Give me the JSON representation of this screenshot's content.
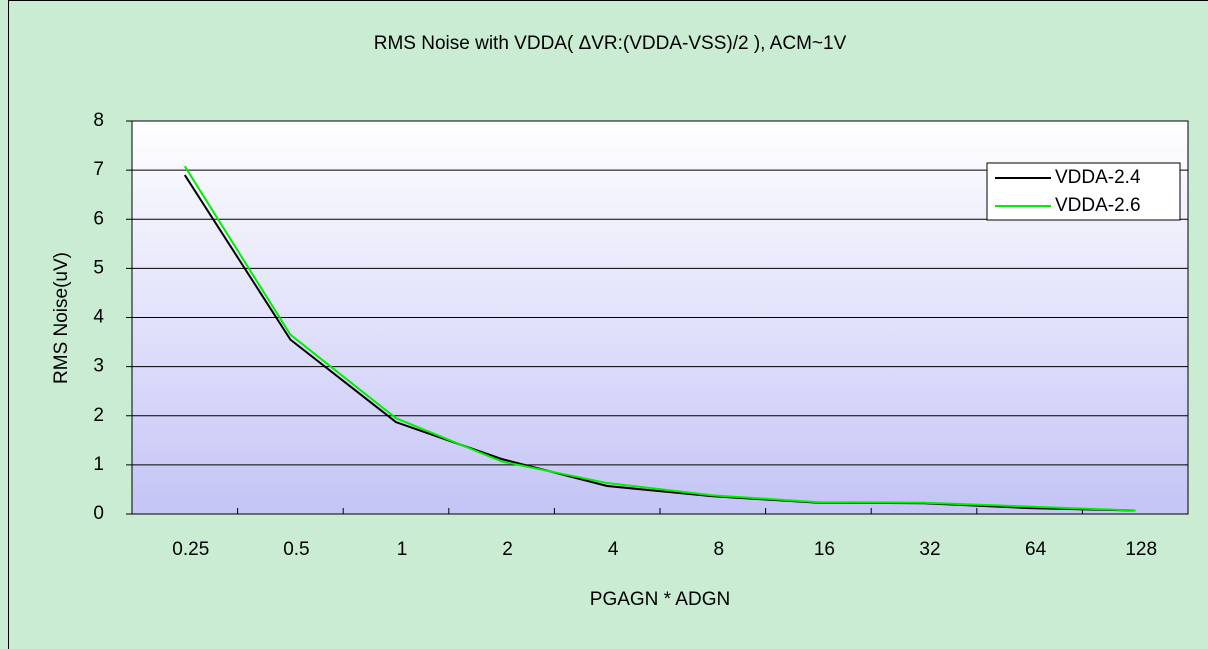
{
  "chart_data": {
    "type": "line",
    "title": "RMS Noise with VDDA( ΔVR:(VDDA-VSS)/2 ), ACM~1V",
    "x_label": "PGAGN * ADGN",
    "y_label": "RMS Noise(uV)",
    "categories": [
      "0.25",
      "0.5",
      "1",
      "2",
      "4",
      "8",
      "16",
      "32",
      "64",
      "128"
    ],
    "series": [
      {
        "name": "VDDA-2.4",
        "color": "#000000",
        "values": [
          6.9,
          3.55,
          1.87,
          1.12,
          0.57,
          0.36,
          0.23,
          0.22,
          0.12,
          0.07
        ]
      },
      {
        "name": "VDDA-2.6",
        "color": "#00ee00",
        "values": [
          7.08,
          3.65,
          1.95,
          1.07,
          0.63,
          0.38,
          0.24,
          0.23,
          0.15,
          0.07
        ]
      }
    ],
    "ylim": [
      0,
      8
    ],
    "yticks": [
      0,
      1,
      2,
      3,
      4,
      5,
      6,
      7,
      8
    ],
    "grid": true,
    "legend": "upper right"
  }
}
